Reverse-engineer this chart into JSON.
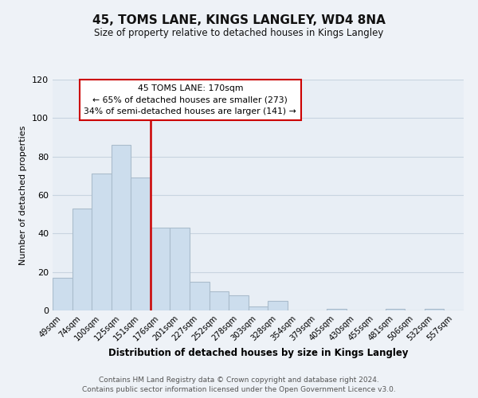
{
  "title": "45, TOMS LANE, KINGS LANGLEY, WD4 8NA",
  "subtitle": "Size of property relative to detached houses in Kings Langley",
  "xlabel": "Distribution of detached houses by size in Kings Langley",
  "ylabel": "Number of detached properties",
  "bar_labels": [
    "49sqm",
    "74sqm",
    "100sqm",
    "125sqm",
    "151sqm",
    "176sqm",
    "201sqm",
    "227sqm",
    "252sqm",
    "278sqm",
    "303sqm",
    "328sqm",
    "354sqm",
    "379sqm",
    "405sqm",
    "430sqm",
    "455sqm",
    "481sqm",
    "506sqm",
    "532sqm",
    "557sqm"
  ],
  "bar_values": [
    17,
    53,
    71,
    86,
    69,
    43,
    43,
    15,
    10,
    8,
    2,
    5,
    0,
    0,
    1,
    0,
    0,
    1,
    0,
    1,
    0
  ],
  "bar_color": "#ccdded",
  "bar_edge_color": "#aabccc",
  "vline_color": "#cc0000",
  "vline_index": 5,
  "annotation_title": "45 TOMS LANE: 170sqm",
  "annotation_line1": "← 65% of detached houses are smaller (273)",
  "annotation_line2": "34% of semi-detached houses are larger (141) →",
  "ylim": [
    0,
    120
  ],
  "yticks": [
    0,
    20,
    40,
    60,
    80,
    100,
    120
  ],
  "footer1": "Contains HM Land Registry data © Crown copyright and database right 2024.",
  "footer2": "Contains public sector information licensed under the Open Government Licence v3.0.",
  "bg_color": "#eef2f7",
  "plot_bg_color": "#e8eef5",
  "grid_color": "#c8d4e0"
}
